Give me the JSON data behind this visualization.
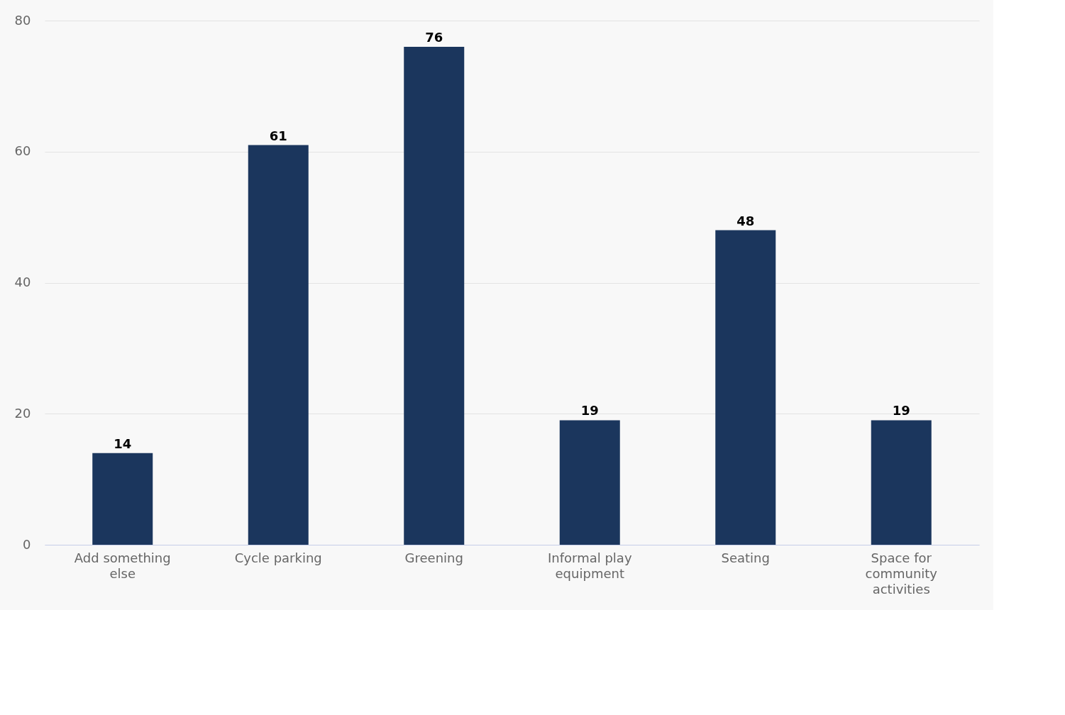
{
  "chart_data": {
    "type": "bar",
    "categories": [
      "Add something else",
      "Cycle parking",
      "Greening",
      "Informal play equipment",
      "Seating",
      "Space for community activities"
    ],
    "values": [
      14,
      61,
      76,
      19,
      48,
      19
    ],
    "color": "#1b365d",
    "ylim": [
      0,
      80
    ],
    "yticks": [
      0,
      20,
      40,
      60,
      80
    ],
    "grid": "y",
    "data_labels": true
  }
}
